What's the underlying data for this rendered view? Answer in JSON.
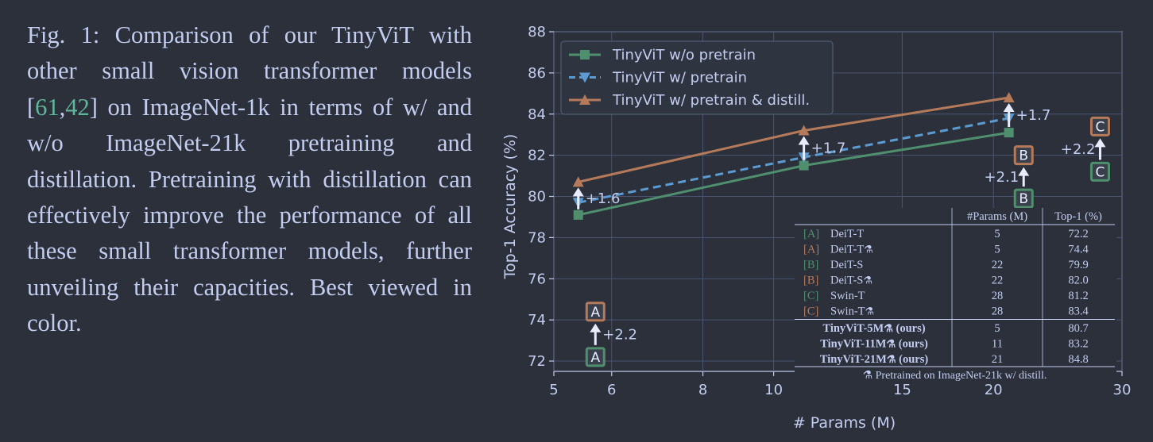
{
  "caption": {
    "label": "Fig. 1:",
    "text_before": "Comparison of our TinyViT with other small vision transformer models [",
    "cite1": "61",
    "sep": ",",
    "cite2": "42",
    "text_after": "] on ImageNet-1k in terms of w/ and w/o ImageNet-21k pretraining and distillation. Pretraining with distillation can effectively improve the performance of all these small transformer models, further unveiling their capacities. Best viewed in color."
  },
  "colors": {
    "background": "#2b303b",
    "text": "#c3cdf0",
    "green": "#4f8f6e",
    "blue": "#5b9bd1",
    "orange": "#b57a5a",
    "grid": "#4b5470"
  },
  "chart_data": {
    "type": "line",
    "xlabel": "# Params (M)",
    "ylabel": "Top-1 Accuracy (%)",
    "x_scale": "log",
    "xlim": [
      5,
      30
    ],
    "ylim": [
      71.5,
      88
    ],
    "x_ticks": [
      5,
      6,
      8,
      10,
      15,
      20,
      30
    ],
    "y_ticks": [
      72,
      74,
      76,
      78,
      80,
      82,
      84,
      86,
      88
    ],
    "grid": true,
    "legend_position": "top-left",
    "series": [
      {
        "name": "TinyViT w/o pretrain",
        "color": "green",
        "marker": "square",
        "dash": "solid",
        "x": [
          5.4,
          11,
          21
        ],
        "y": [
          79.1,
          81.5,
          83.1
        ]
      },
      {
        "name": "TinyViT w/ pretrain",
        "color": "blue",
        "marker": "triangle-down",
        "dash": "dashed",
        "x": [
          5.4,
          11,
          21
        ],
        "y": [
          79.7,
          81.9,
          83.8
        ]
      },
      {
        "name": "TinyViT w/ pretrain & distill.",
        "color": "orange",
        "marker": "triangle-up",
        "dash": "solid",
        "x": [
          5.4,
          11,
          21
        ],
        "y": [
          80.7,
          83.2,
          84.8
        ]
      }
    ],
    "gain_arrows": [
      {
        "x": 5.4,
        "y_from": 79.1,
        "y_to": 80.7,
        "label": "+1.6"
      },
      {
        "x": 11,
        "y_from": 81.5,
        "y_to": 83.2,
        "label": "+1.7"
      },
      {
        "x": 21,
        "y_from": 83.1,
        "y_to": 84.8,
        "label": "+1.7"
      }
    ],
    "baseline_points": [
      {
        "id": "A",
        "x": 5.7,
        "y_before": 72.2,
        "y_after": 74.4,
        "gain": "+2.2"
      },
      {
        "id": "B",
        "x": 22,
        "y_before": 79.9,
        "y_after": 82.0,
        "gain": "+2.1"
      },
      {
        "id": "C",
        "x": 28,
        "y_before": 81.2,
        "y_after": 83.4,
        "gain": "+2.2"
      }
    ],
    "table": {
      "headers": [
        "#Params (M)",
        "Top-1 (%)"
      ],
      "rows": [
        {
          "tag": "[A]",
          "tag_color": "green",
          "name": "DeiT-T",
          "flask": false,
          "bold": false,
          "params": "5",
          "top1": "72.2"
        },
        {
          "tag": "[A]",
          "tag_color": "orange",
          "name": "DeiT-T",
          "flask": true,
          "bold": false,
          "params": "5",
          "top1": "74.4"
        },
        {
          "tag": "[B]",
          "tag_color": "green",
          "name": "DeiT-S",
          "flask": false,
          "bold": false,
          "params": "22",
          "top1": "79.9"
        },
        {
          "tag": "[B]",
          "tag_color": "orange",
          "name": "DeiT-S",
          "flask": true,
          "bold": false,
          "params": "22",
          "top1": "82.0"
        },
        {
          "tag": "[C]",
          "tag_color": "green",
          "name": "Swin-T",
          "flask": false,
          "bold": false,
          "params": "28",
          "top1": "81.2"
        },
        {
          "tag": "[C]",
          "tag_color": "orange",
          "name": "Swin-T",
          "flask": true,
          "bold": false,
          "params": "28",
          "top1": "83.4"
        },
        {
          "tag": "",
          "tag_color": "",
          "name": "TinyViT-5M",
          "flask": true,
          "suffix": " (ours)",
          "bold": true,
          "params": "5",
          "top1": "80.7"
        },
        {
          "tag": "",
          "tag_color": "",
          "name": "TinyViT-11M",
          "flask": true,
          "suffix": " (ours)",
          "bold": true,
          "params": "11",
          "top1": "83.2"
        },
        {
          "tag": "",
          "tag_color": "",
          "name": "TinyViT-21M",
          "flask": true,
          "suffix": " (ours)",
          "bold": true,
          "params": "21",
          "top1": "84.8"
        }
      ],
      "footnote": "Pretrained on ImageNet-21k w/ distill."
    }
  }
}
